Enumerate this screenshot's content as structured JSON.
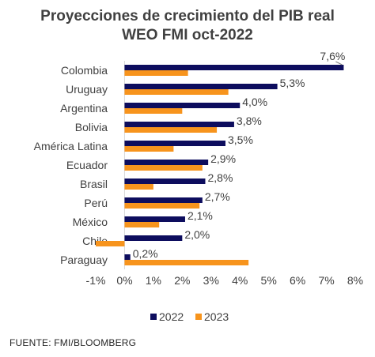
{
  "chart_data": {
    "type": "bar",
    "orientation": "horizontal",
    "title_line1": "Proyecciones de crecimiento del PIB real",
    "title_line2": "WEO FMI oct-2022",
    "categories": [
      "Colombia",
      "Uruguay",
      "Argentina",
      "Bolivia",
      "América Latina",
      "Ecuador",
      "Brasil",
      "Perú",
      "México",
      "Chile",
      "Paraguay"
    ],
    "series": [
      {
        "name": "2022",
        "color": "#0d0d5e",
        "values": [
          7.6,
          5.3,
          4.0,
          3.8,
          3.5,
          2.9,
          2.8,
          2.7,
          2.1,
          2.0,
          0.2
        ],
        "labels": [
          "7,6%",
          "5,3%",
          "4,0%",
          "3,8%",
          "3,5%",
          "2,9%",
          "2,8%",
          "2,7%",
          "2,1%",
          "2,0%",
          "0,2%"
        ]
      },
      {
        "name": "2023",
        "color": "#f7941d",
        "values": [
          2.2,
          3.6,
          2.0,
          3.2,
          1.7,
          2.7,
          1.0,
          2.6,
          1.2,
          -1.0,
          4.3
        ]
      }
    ],
    "xlim": [
      -1,
      8
    ],
    "xticks": [
      "-1%",
      "0%",
      "1%",
      "2%",
      "3%",
      "4%",
      "5%",
      "6%",
      "7%",
      "8%"
    ],
    "legend_position": "bottom"
  },
  "source": "FUENTE: FMI/BLOOMBERG"
}
